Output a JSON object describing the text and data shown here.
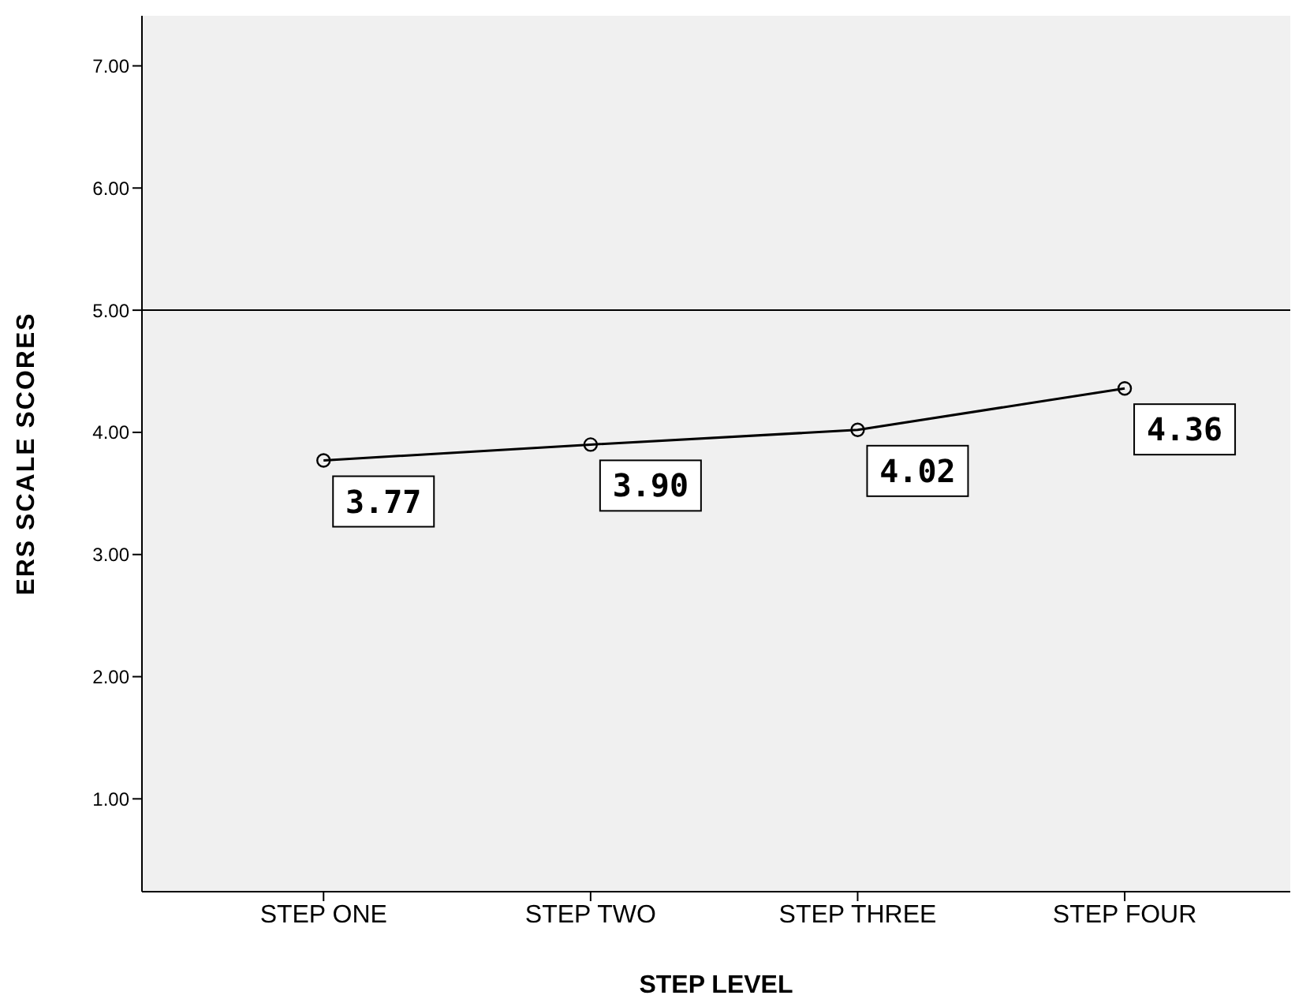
{
  "chart_data": {
    "type": "line",
    "xlabel": "STEP LEVEL",
    "ylabel": "ERS SCALE SCORES",
    "categories": [
      "STEP ONE",
      "STEP TWO",
      "STEP THREE",
      "STEP FOUR"
    ],
    "series": [
      {
        "color": "#000000",
        "values": [
          3.77,
          3.9,
          4.02,
          4.36
        ],
        "value_labels": [
          "3.77",
          "3.90",
          "4.02",
          "4.36"
        ]
      }
    ],
    "ylim": [
      0.24,
      7.41
    ],
    "yticks": [
      {
        "value": 1,
        "label": "1.00"
      },
      {
        "value": 2,
        "label": "2.00"
      },
      {
        "value": 3,
        "label": "3.00"
      },
      {
        "value": 4,
        "label": "4.00"
      },
      {
        "value": 5,
        "label": "5.00"
      },
      {
        "value": 6,
        "label": "6.00"
      },
      {
        "value": 7,
        "label": "7.00"
      }
    ],
    "ref_lines": [
      {
        "axis": "y",
        "value": 5,
        "color": "#000000"
      }
    ],
    "marker": "circle",
    "line_style": "solid",
    "grid": false
  }
}
